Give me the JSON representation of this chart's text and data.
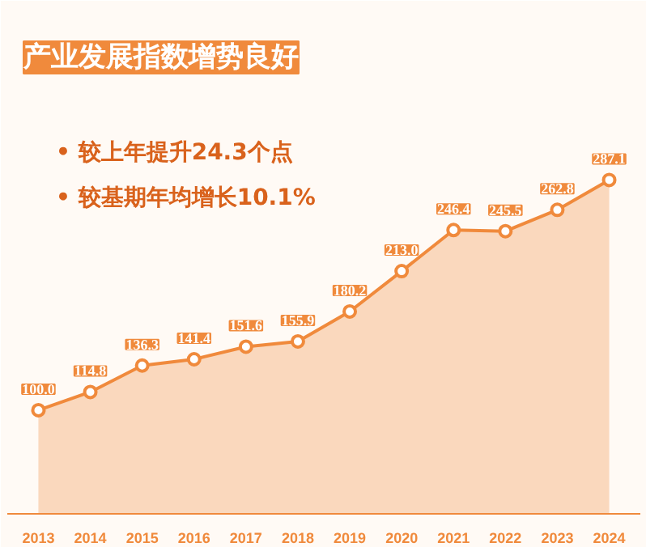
{
  "chart_data": {
    "type": "area",
    "title": "产业发展指数增势良好",
    "categories": [
      "2013",
      "2014",
      "2015",
      "2016",
      "2017",
      "2018",
      "2019",
      "2020",
      "2021",
      "2022",
      "2023",
      "2024"
    ],
    "values": [
      100.0,
      114.8,
      136.3,
      141.4,
      151.6,
      155.9,
      180.2,
      213.0,
      246.4,
      245.5,
      262.8,
      287.1
    ],
    "color": "#f08a3c",
    "value_labels": [
      "100.0",
      "114.8",
      "136.3",
      "141.4",
      "151.6",
      "155.9",
      "180.2",
      "213.0",
      "246.4",
      "245.5",
      "262.8",
      "287.1"
    ],
    "marker": "circle",
    "grid": false,
    "annotations": [
      "• 较上年提升24.3个点",
      "• 较基期年均增长10.1%"
    ]
  }
}
